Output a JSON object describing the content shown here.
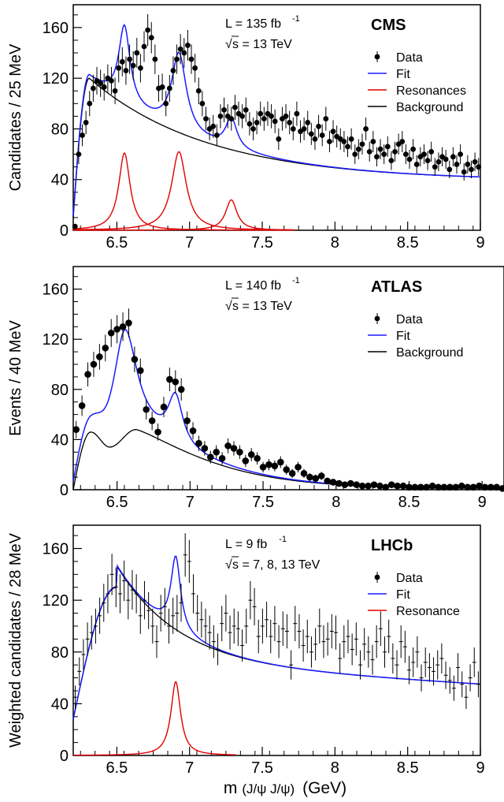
{
  "xlabel_main": "m",
  "xlabel_paren": "(J/ψ J/ψ)",
  "xlabel_unit": "(GeV)",
  "colors": {
    "data": "#000000",
    "fit": "#1a1aff",
    "resonance": "#e00000",
    "background": "#000000"
  },
  "chart_data": [
    {
      "type": "scatter",
      "experiment": "CMS",
      "lumi_text": "L = 135 fb",
      "lumi_sup": "-1",
      "energy_text": "s = 13 TeV",
      "ylabel": "Candidates / 25 MeV",
      "xlim": [
        6.2,
        9.0
      ],
      "ylim": [
        0,
        178
      ],
      "x_ticks": [
        "6.5",
        "7",
        "7.5",
        "8",
        "8.5",
        "9"
      ],
      "y_ticks": [
        "0",
        "40",
        "80",
        "120",
        "160"
      ],
      "legend_position": "top-right",
      "legend": [
        {
          "label": "Data",
          "style": "data"
        },
        {
          "label": "Fit",
          "style": "fit"
        },
        {
          "label": "Resonances",
          "style": "resonance"
        },
        {
          "label": "Background",
          "style": "background"
        }
      ],
      "data_points": {
        "x_start": 6.2125,
        "x_step": 0.025,
        "error_style": "sqrt",
        "y": [
          3,
          60,
          75,
          85,
          100,
          112,
          118,
          116,
          113,
          120,
          118,
          110,
          128,
          133,
          126,
          135,
          130,
          140,
          128,
          145,
          158,
          152,
          135,
          112,
          113,
          100,
          112,
          126,
          135,
          143,
          140,
          146,
          135,
          128,
          110,
          100,
          88,
          80,
          82,
          75,
          90,
          95,
          90,
          88,
          97,
          92,
          90,
          95,
          84,
          80,
          85,
          92,
          88,
          92,
          90,
          86,
          72,
          88,
          90,
          85,
          80,
          92,
          78,
          80,
          85,
          76,
          72,
          82,
          75,
          88,
          70,
          78,
          74,
          72,
          70,
          66,
          72,
          60,
          64,
          68,
          80,
          62,
          70,
          58,
          64,
          60,
          66,
          55,
          62,
          68,
          70,
          60,
          56,
          64,
          52,
          58,
          60,
          55,
          62,
          50,
          54,
          58,
          56,
          48,
          58,
          52,
          60,
          46,
          52,
          48,
          54,
          50,
          44,
          48,
          54,
          40
        ]
      },
      "background": {
        "type": "threshold",
        "x0": 6.194,
        "peak_x": 6.31,
        "peak_y": 120,
        "end_y": 39
      },
      "resonances": [
        {
          "mass": 6.552,
          "width": 0.094,
          "height": 61
        },
        {
          "mass": 6.927,
          "width": 0.122,
          "height": 62
        },
        {
          "mass": 7.287,
          "width": 0.095,
          "height": 24
        }
      ],
      "resonance_x_end": 7.72
    },
    {
      "type": "scatter",
      "experiment": "ATLAS",
      "lumi_text": "L = 140 fb",
      "lumi_sup": "-1",
      "energy_text": "s = 13 TeV",
      "ylabel": "Events / 40 MeV",
      "xlim": [
        6.2,
        9.15
      ],
      "ylim": [
        0,
        178
      ],
      "x_ticks": [
        "6.5",
        "7",
        "7.5",
        "8",
        "8.5",
        "9"
      ],
      "y_ticks": [
        "0",
        "40",
        "80",
        "120",
        "160"
      ],
      "legend_position": "top-right",
      "legend": [
        {
          "label": "Data",
          "style": "data"
        },
        {
          "label": "Fit",
          "style": "fit"
        },
        {
          "label": "Background",
          "style": "background"
        }
      ],
      "data_points": {
        "x_start": 6.22,
        "x_step": 0.04,
        "error_style": "sqrt",
        "y": [
          48,
          67,
          92,
          100,
          106,
          113,
          125,
          128,
          130,
          133,
          104,
          95,
          64,
          55,
          46,
          66,
          88,
          86,
          80,
          55,
          47,
          37,
          33,
          26,
          30,
          25,
          35,
          33,
          30,
          23,
          28,
          25,
          18,
          20,
          19,
          22,
          16,
          13,
          18,
          13,
          10,
          9,
          11,
          7,
          6,
          5,
          4,
          5,
          4,
          3,
          3,
          4,
          3,
          2,
          4,
          3,
          3,
          2,
          2,
          2,
          2,
          3,
          2,
          2,
          2,
          2,
          3,
          2,
          2,
          3,
          2,
          2,
          2,
          1,
          1
        ]
      },
      "background": {
        "type": "atlas_bump",
        "x0": 6.2,
        "first_peak_x": 6.32,
        "first_peak_y": 46,
        "dip_x": 6.45,
        "dip_y": 34,
        "second_peak_x": 6.63,
        "second_peak_y": 48,
        "end_y": 1
      }
    },
    {
      "type": "scatter",
      "experiment": "LHCb",
      "lumi_text": "L = 9 fb",
      "lumi_sup": "-1",
      "energy_text": "s = 7, 8, 13 TeV",
      "ylabel": "Weighted candidates / 28 MeV",
      "xlim": [
        6.2,
        9.0
      ],
      "ylim": [
        0,
        178
      ],
      "x_ticks": [
        "6.5",
        "7",
        "7.5",
        "8",
        "8.5",
        "9"
      ],
      "y_ticks": [
        "0",
        "40",
        "80",
        "120",
        "160"
      ],
      "legend_position": "top-right",
      "legend": [
        {
          "label": "Data",
          "style": "data"
        },
        {
          "label": "Fit",
          "style": "fit"
        },
        {
          "label": "Resonance",
          "style": "resonance"
        }
      ],
      "data_points": {
        "x_start": 6.214,
        "x_step": 0.028,
        "error_style": "sqrt",
        "y": [
          45,
          65,
          78,
          90,
          95,
          100,
          108,
          118,
          125,
          140,
          130,
          125,
          135,
          120,
          128,
          125,
          108,
          120,
          112,
          100,
          88,
          110,
          115,
          100,
          108,
          110,
          118,
          155,
          150,
          125,
          110,
          105,
          100,
          95,
          88,
          82,
          102,
          110,
          95,
          100,
          98,
          85,
          100,
          120,
          115,
          92,
          100,
          105,
          92,
          102,
          88,
          98,
          96,
          70,
          102,
          96,
          85,
          92,
          80,
          86,
          100,
          88,
          90,
          96,
          95,
          75,
          88,
          92,
          82,
          90,
          70,
          86,
          80,
          74,
          88,
          98,
          80,
          92,
          75,
          70,
          88,
          84,
          66,
          72,
          80,
          60,
          72,
          68,
          65,
          70,
          75,
          62,
          58,
          52,
          68,
          55,
          45,
          60,
          72,
          55
        ]
      },
      "background": {
        "type": "smooth",
        "x0": 6.2,
        "start_y": 28,
        "peak_x": 6.5,
        "peak_y": 130,
        "end_y": 55
      },
      "resonances": [
        {
          "mass": 6.905,
          "width": 0.08,
          "height": 57
        }
      ],
      "resonance_x_end": 7.32
    }
  ]
}
